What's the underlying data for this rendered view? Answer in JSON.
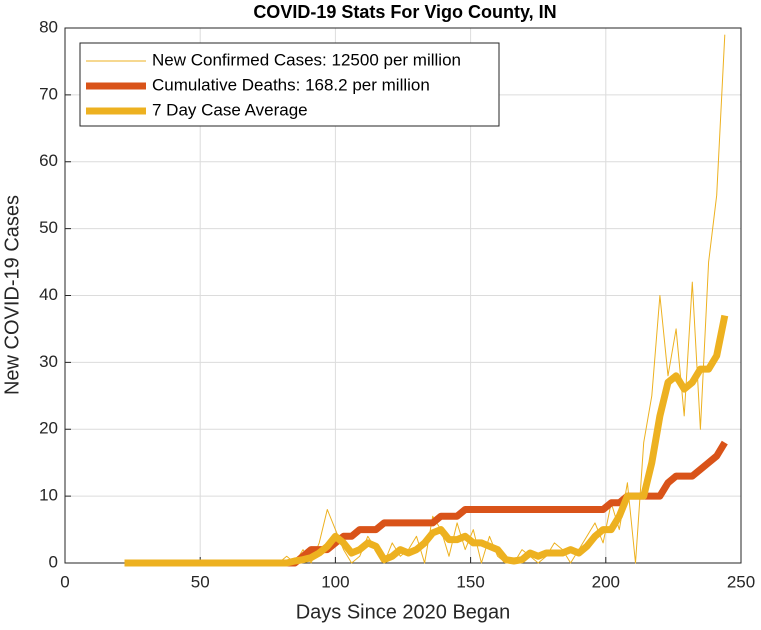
{
  "chart_data": {
    "type": "line",
    "title": "COVID-19 Stats For Vigo County, IN",
    "xlabel": "Days Since 2020 Began",
    "ylabel": "New COVID-19 Cases",
    "x": [
      22,
      25,
      28,
      31,
      34,
      37,
      40,
      43,
      46,
      49,
      52,
      55,
      58,
      61,
      64,
      67,
      70,
      73,
      76,
      79,
      82,
      85,
      88,
      91,
      94,
      97,
      100,
      103,
      106,
      109,
      112,
      115,
      118,
      121,
      124,
      127,
      130,
      133,
      136,
      139,
      142,
      145,
      148,
      151,
      154,
      157,
      160,
      163,
      166,
      169,
      172,
      175,
      178,
      181,
      184,
      187,
      190,
      193,
      196,
      199,
      202,
      205,
      208,
      211,
      214,
      217,
      220,
      223,
      226,
      229,
      232,
      235,
      238,
      241,
      244
    ],
    "series": [
      {
        "name": "New Confirmed Cases: 12500 per million",
        "color": "#edb120",
        "width": 1,
        "values": [
          0,
          0,
          0,
          0,
          0,
          0,
          0,
          0,
          0,
          0,
          0,
          0,
          0,
          0,
          0,
          0,
          0,
          0,
          0,
          0,
          1,
          0,
          2,
          0,
          3,
          8,
          5,
          2,
          0,
          1,
          4,
          2,
          0,
          3,
          1,
          2,
          4,
          0,
          7,
          5,
          1,
          6,
          2,
          5,
          0,
          4,
          1,
          0,
          0,
          2,
          1,
          0,
          1,
          3,
          2,
          0,
          2,
          4,
          6,
          3,
          9,
          5,
          12,
          0,
          18,
          25,
          40,
          28,
          35,
          22,
          42,
          20,
          45,
          55,
          79
        ]
      },
      {
        "name": "Cumulative Deaths: 168.2 per million",
        "color": "#d95319",
        "width": 7,
        "values": [
          0,
          0,
          0,
          0,
          0,
          0,
          0,
          0,
          0,
          0,
          0,
          0,
          0,
          0,
          0,
          0,
          0,
          0,
          0,
          0,
          0,
          0,
          1,
          2,
          2,
          2,
          3,
          4,
          4,
          5,
          5,
          5,
          6,
          6,
          6,
          6,
          6,
          6,
          6,
          7,
          7,
          7,
          8,
          8,
          8,
          8,
          8,
          8,
          8,
          8,
          8,
          8,
          8,
          8,
          8,
          8,
          8,
          8,
          8,
          8,
          9,
          9,
          10,
          10,
          10,
          10,
          10,
          12,
          13,
          13,
          13,
          14,
          15,
          16,
          18
        ]
      },
      {
        "name": "7 Day Case Average",
        "color": "#edb120",
        "width": 7,
        "values": [
          0,
          0,
          0,
          0,
          0,
          0,
          0,
          0,
          0,
          0,
          0,
          0,
          0,
          0,
          0,
          0,
          0,
          0,
          0,
          0,
          0,
          0.3,
          0.5,
          0.8,
          1.5,
          2.5,
          4,
          3,
          1.5,
          2,
          3,
          2.5,
          0.5,
          1,
          2,
          1.5,
          2,
          3,
          4.5,
          5,
          3.5,
          3.5,
          4,
          3,
          3,
          2.5,
          2,
          0.5,
          0.3,
          0.5,
          1.5,
          1,
          1.5,
          1.5,
          1.5,
          2,
          1.5,
          2.5,
          4,
          5,
          5,
          7,
          10,
          10,
          10,
          15,
          22,
          27,
          28,
          26,
          27,
          29,
          29,
          31,
          37
        ]
      }
    ],
    "xlim": [
      0,
      250
    ],
    "xticks": [
      0,
      50,
      100,
      150,
      200,
      250
    ],
    "ylim": [
      0,
      80
    ],
    "yticks": [
      0,
      10,
      20,
      30,
      40,
      50,
      60,
      70,
      80
    ],
    "grid": true,
    "legend": "top-left"
  }
}
